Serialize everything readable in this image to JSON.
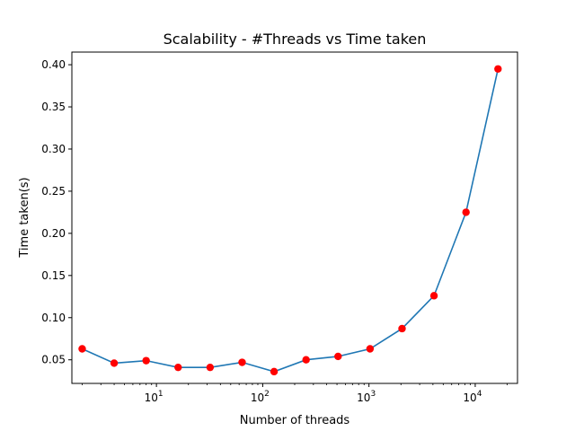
{
  "chart_data": {
    "type": "line",
    "title": "Scalability - #Threads vs Time taken",
    "xlabel": "Number of threads",
    "ylabel": "Time taken(s)",
    "xscale": "log",
    "grid": false,
    "xlim": [
      1.6,
      25000
    ],
    "ylim": [
      0.022,
      0.415
    ],
    "x_ticks": [
      {
        "value": 10,
        "base": "10",
        "exp": "1"
      },
      {
        "value": 100,
        "base": "10",
        "exp": "2"
      },
      {
        "value": 1000,
        "base": "10",
        "exp": "3"
      },
      {
        "value": 10000,
        "base": "10",
        "exp": "4"
      }
    ],
    "y_ticks": [
      "0.05",
      "0.10",
      "0.15",
      "0.20",
      "0.25",
      "0.30",
      "0.35",
      "0.40"
    ],
    "series": [
      {
        "line_color": "#1f77b4",
        "marker_color": "#ff0000",
        "x": [
          2,
          4,
          8,
          16,
          32,
          64,
          128,
          256,
          512,
          1024,
          2048,
          4096,
          8192,
          16384
        ],
        "y": [
          0.063,
          0.046,
          0.049,
          0.041,
          0.041,
          0.047,
          0.036,
          0.05,
          0.054,
          0.063,
          0.087,
          0.126,
          0.225,
          0.395
        ]
      }
    ]
  }
}
